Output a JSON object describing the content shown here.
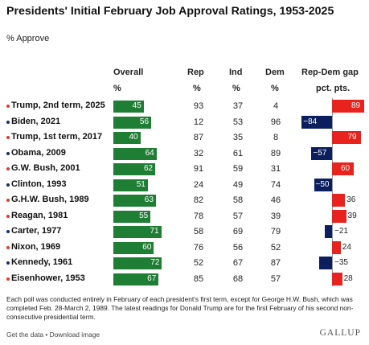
{
  "title": "Presidents' Initial February Job Approval Ratings, 1953-2025",
  "subtitle": "% Approve",
  "headers": {
    "overall": "Overall",
    "rep": "Rep",
    "ind": "Ind",
    "dem": "Dem",
    "gap": "Rep-Dem gap",
    "pct": "%",
    "pct_pts": "pct. pts."
  },
  "colors": {
    "republican": "#e8372c",
    "democrat": "#1a2a6c",
    "overall_bar": "#1e7e34",
    "gap_positive": "#e8221d",
    "gap_negative": "#0b1f5e"
  },
  "chart_data": {
    "type": "table",
    "title": "Presidents' Initial February Job Approval Ratings, 1953-2025",
    "subtitle": "% Approve",
    "columns": [
      "Overall",
      "Rep",
      "Ind",
      "Dem",
      "Rep-Dem gap"
    ],
    "rows": [
      {
        "label": "Trump, 2nd term, 2025",
        "party": "R",
        "overall": 45,
        "rep": 93,
        "ind": 37,
        "dem": 4,
        "gap": 89
      },
      {
        "label": "Biden, 2021",
        "party": "D",
        "overall": 56,
        "rep": 12,
        "ind": 53,
        "dem": 96,
        "gap": -84
      },
      {
        "label": "Trump, 1st term, 2017",
        "party": "R",
        "overall": 40,
        "rep": 87,
        "ind": 35,
        "dem": 8,
        "gap": 79
      },
      {
        "label": "Obama, 2009",
        "party": "D",
        "overall": 64,
        "rep": 32,
        "ind": 61,
        "dem": 89,
        "gap": -57
      },
      {
        "label": "G.W. Bush, 2001",
        "party": "R",
        "overall": 62,
        "rep": 91,
        "ind": 59,
        "dem": 31,
        "gap": 60
      },
      {
        "label": "Clinton, 1993",
        "party": "D",
        "overall": 51,
        "rep": 24,
        "ind": 49,
        "dem": 74,
        "gap": -50
      },
      {
        "label": "G.H.W. Bush, 1989",
        "party": "R",
        "overall": 63,
        "rep": 82,
        "ind": 58,
        "dem": 46,
        "gap": 36
      },
      {
        "label": "Reagan, 1981",
        "party": "R",
        "overall": 55,
        "rep": 78,
        "ind": 57,
        "dem": 39,
        "gap": 39
      },
      {
        "label": "Carter, 1977",
        "party": "D",
        "overall": 71,
        "rep": 58,
        "ind": 69,
        "dem": 79,
        "gap": -21
      },
      {
        "label": "Nixon, 1969",
        "party": "R",
        "overall": 60,
        "rep": 76,
        "ind": 56,
        "dem": 52,
        "gap": 24
      },
      {
        "label": "Kennedy, 1961",
        "party": "D",
        "overall": 72,
        "rep": 52,
        "ind": 67,
        "dem": 87,
        "gap": -35
      },
      {
        "label": "Eisenhower, 1953",
        "party": "R",
        "overall": 67,
        "rep": 85,
        "ind": 68,
        "dem": 57,
        "gap": 28
      }
    ],
    "overall_range": [
      0,
      100
    ],
    "gap_range": [
      -100,
      100
    ]
  },
  "note": "Each poll was conducted entirely in February of each president's first term, except for George H.W. Bush, which was completed Feb. 28-March 2, 1989. The latest readings for Donald Trump are for the first February of his second non-consecutive presidential term.",
  "footer": {
    "links": "Get the data • Download image",
    "brand": "GALLUP"
  }
}
